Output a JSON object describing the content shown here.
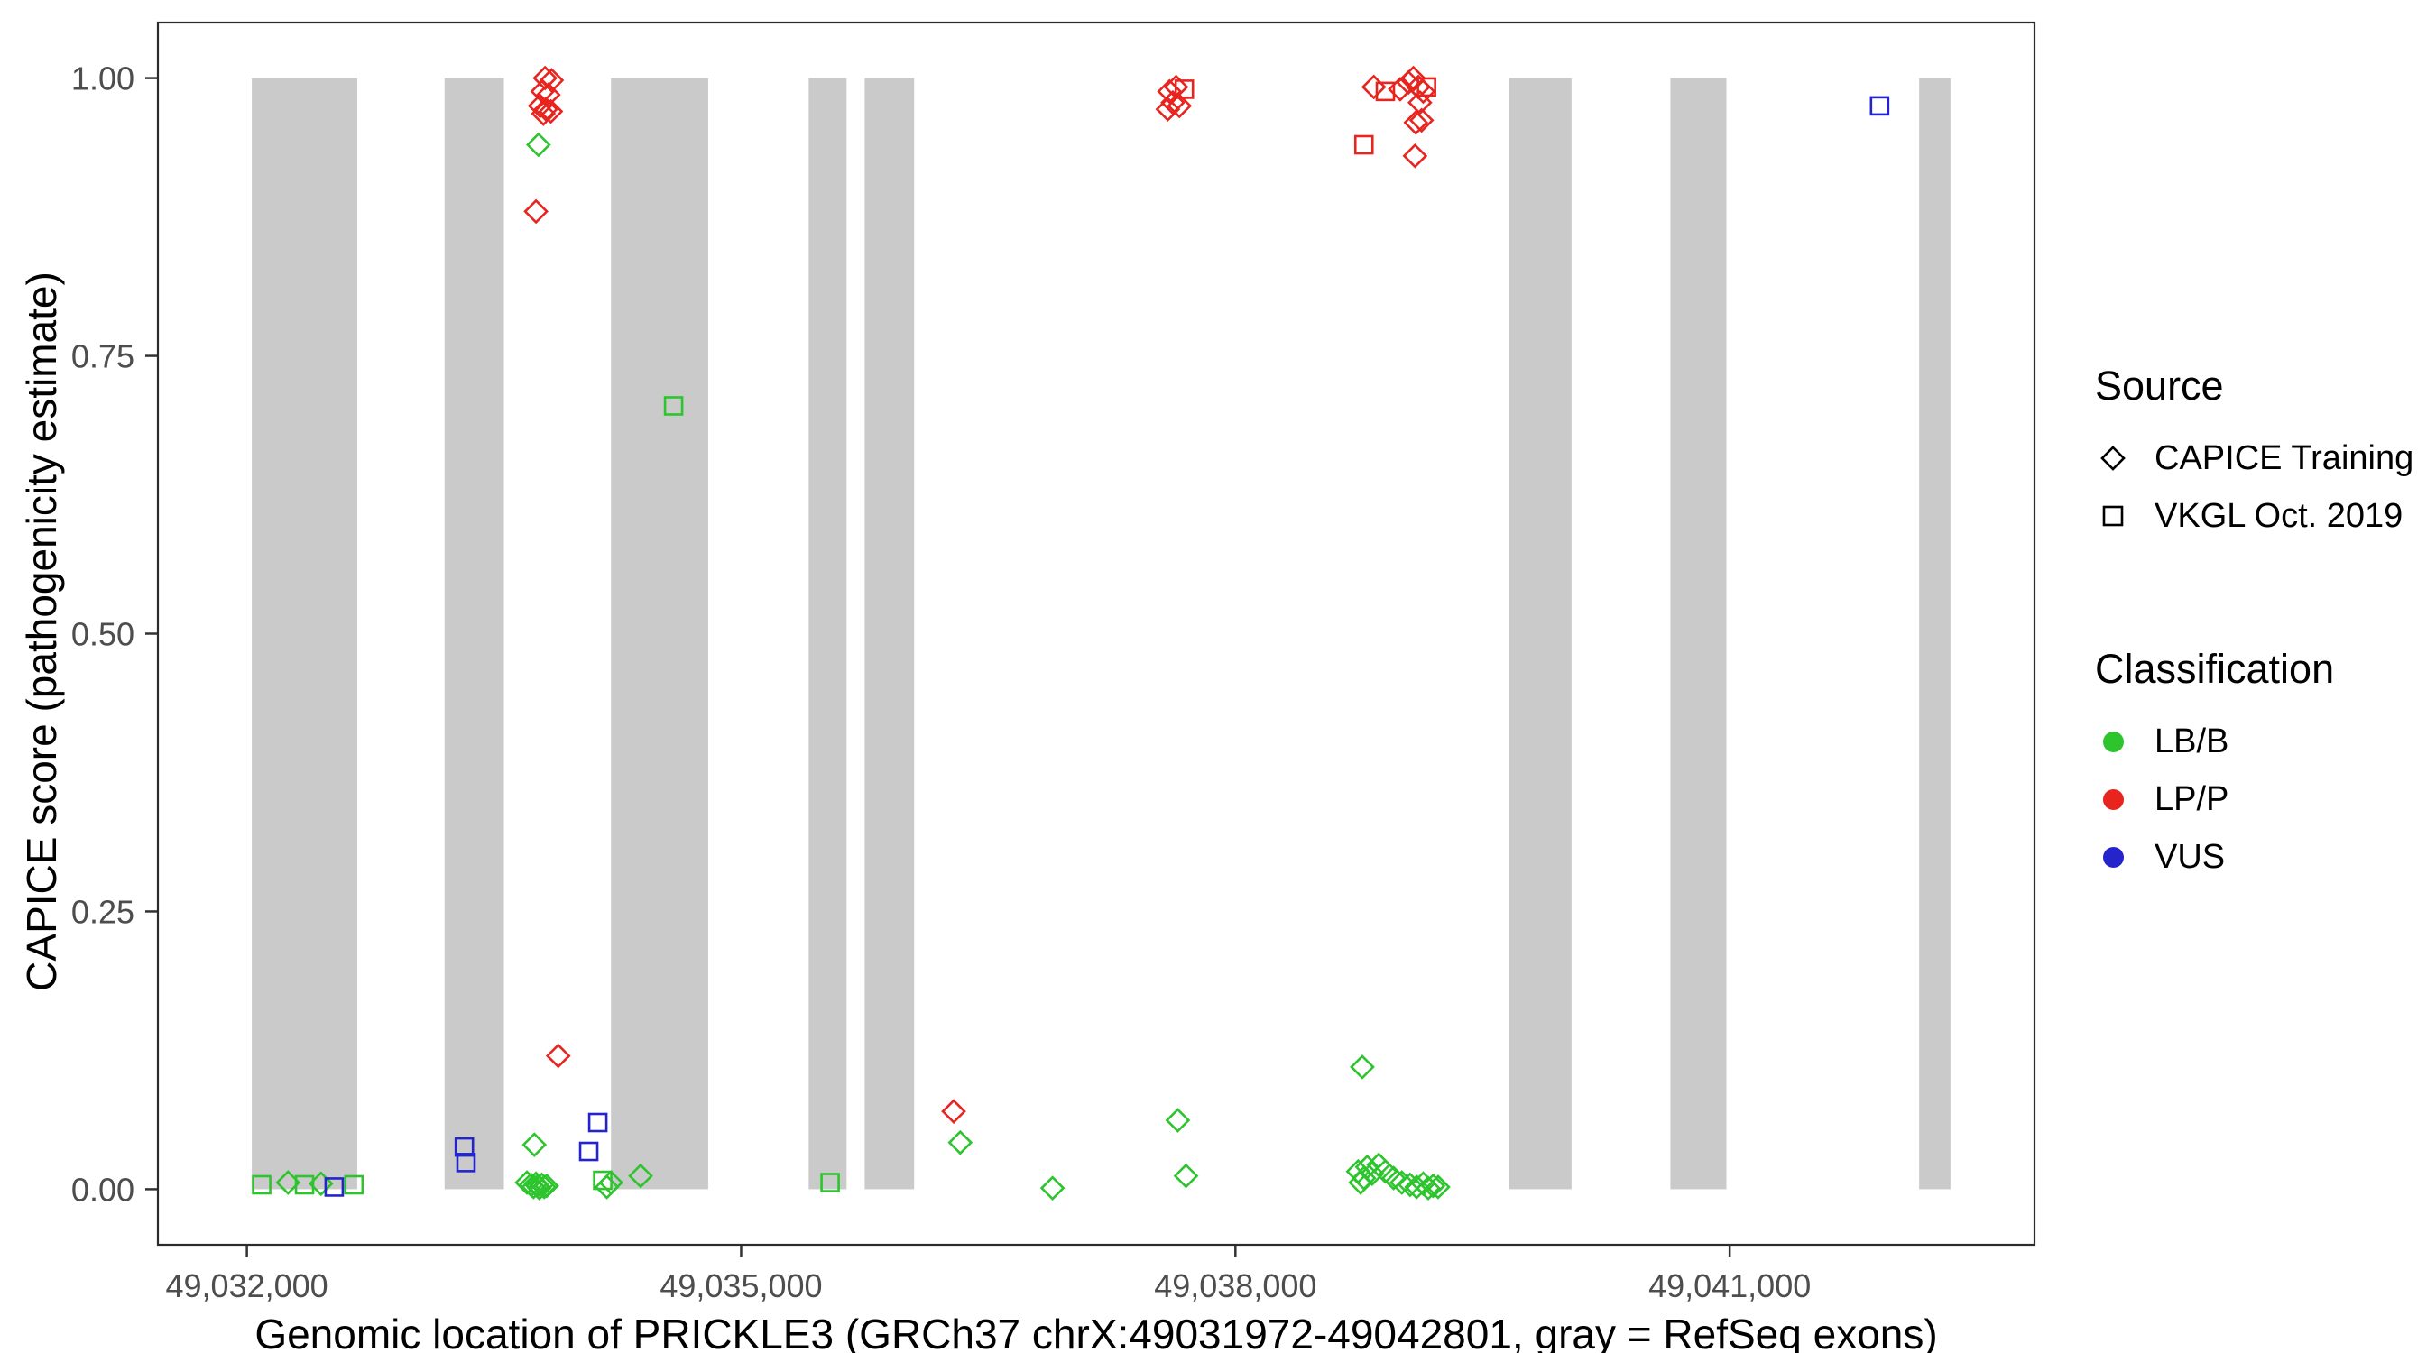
{
  "legend": {
    "source": {
      "title": "Source",
      "items": [
        {
          "label": "CAPICE Training",
          "shape": "diamond"
        },
        {
          "label": "VKGL Oct. 2019",
          "shape": "square"
        }
      ]
    },
    "classification": {
      "title": "Classification",
      "items": [
        {
          "label": "LB/B",
          "color": "#2dc42d"
        },
        {
          "label": "LP/P",
          "color": "#e8241f"
        },
        {
          "label": "VUS",
          "color": "#2424cc"
        }
      ]
    }
  },
  "chart_data": {
    "type": "scatter",
    "title": "",
    "xlabel": "Genomic location of PRICKLE3 (GRCh37 chrX:49031972-49042801, gray = RefSeq exons)",
    "ylabel": "CAPICE score (pathogenicity estimate)",
    "xlim": [
      49031460,
      49042850
    ],
    "ylim": [
      -0.05,
      1.05
    ],
    "grid": false,
    "legend_position": "right",
    "x_ticks": [
      {
        "value": 49032000,
        "label": "49,032,000"
      },
      {
        "value": 49035000,
        "label": "49,035,000"
      },
      {
        "value": 49038000,
        "label": "49,038,000"
      },
      {
        "value": 49041000,
        "label": "49,041,000"
      }
    ],
    "y_ticks": [
      {
        "value": 0.0,
        "label": "0.00"
      },
      {
        "value": 0.25,
        "label": "0.25"
      },
      {
        "value": 0.5,
        "label": "0.50"
      },
      {
        "value": 0.75,
        "label": "0.75"
      },
      {
        "value": 1.0,
        "label": "1.00"
      }
    ],
    "exon_note": "gray bands = RefSeq exons, drawn from score 0 to 1",
    "exon_color": "#cacaca",
    "colors": {
      "LB/B": "#2dc42d",
      "LP/P": "#e8241f",
      "VUS": "#2424cc"
    },
    "shapes": {
      "CAPICE Training": "diamond",
      "VKGL Oct. 2019": "square"
    },
    "exons": [
      [
        49032030,
        49032670
      ],
      [
        49033200,
        49033560
      ],
      [
        49034210,
        49034800
      ],
      [
        49035410,
        49035640
      ],
      [
        49035750,
        49036050
      ],
      [
        49039660,
        49040040
      ],
      [
        49040640,
        49040980
      ],
      [
        49042150,
        49042340
      ]
    ],
    "points": [
      {
        "x": 49032090,
        "y": 0.004,
        "source": "VKGL Oct. 2019",
        "class": "LB/B"
      },
      {
        "x": 49032250,
        "y": 0.006,
        "source": "CAPICE Training",
        "class": "LB/B"
      },
      {
        "x": 49032350,
        "y": 0.004,
        "source": "VKGL Oct. 2019",
        "class": "LB/B"
      },
      {
        "x": 49032450,
        "y": 0.005,
        "source": "CAPICE Training",
        "class": "LB/B"
      },
      {
        "x": 49032530,
        "y": 0.002,
        "source": "VKGL Oct. 2019",
        "class": "VUS"
      },
      {
        "x": 49032650,
        "y": 0.004,
        "source": "VKGL Oct. 2019",
        "class": "LB/B"
      },
      {
        "x": 49033320,
        "y": 0.038,
        "source": "VKGL Oct. 2019",
        "class": "VUS"
      },
      {
        "x": 49033330,
        "y": 0.024,
        "source": "VKGL Oct. 2019",
        "class": "VUS"
      },
      {
        "x": 49033810,
        "y": 1.0,
        "source": "CAPICE Training",
        "class": "LP/P"
      },
      {
        "x": 49033850,
        "y": 0.998,
        "source": "CAPICE Training",
        "class": "LP/P"
      },
      {
        "x": 49033795,
        "y": 0.988,
        "source": "CAPICE Training",
        "class": "LP/P"
      },
      {
        "x": 49033830,
        "y": 0.985,
        "source": "CAPICE Training",
        "class": "LP/P"
      },
      {
        "x": 49033780,
        "y": 0.975,
        "source": "CAPICE Training",
        "class": "LP/P"
      },
      {
        "x": 49033815,
        "y": 0.972,
        "source": "CAPICE Training",
        "class": "LP/P"
      },
      {
        "x": 49033845,
        "y": 0.97,
        "source": "CAPICE Training",
        "class": "LP/P"
      },
      {
        "x": 49033800,
        "y": 0.968,
        "source": "CAPICE Training",
        "class": "LP/P"
      },
      {
        "x": 49033770,
        "y": 0.94,
        "source": "CAPICE Training",
        "class": "LB/B"
      },
      {
        "x": 49033755,
        "y": 0.88,
        "source": "CAPICE Training",
        "class": "LP/P"
      },
      {
        "x": 49033890,
        "y": 0.12,
        "source": "CAPICE Training",
        "class": "LP/P"
      },
      {
        "x": 49033745,
        "y": 0.04,
        "source": "CAPICE Training",
        "class": "LB/B"
      },
      {
        "x": 49033700,
        "y": 0.006,
        "source": "CAPICE Training",
        "class": "LB/B"
      },
      {
        "x": 49033725,
        "y": 0.004,
        "source": "CAPICE Training",
        "class": "LB/B"
      },
      {
        "x": 49033740,
        "y": 0.002,
        "source": "CAPICE Training",
        "class": "LB/B"
      },
      {
        "x": 49033755,
        "y": 0.005,
        "source": "CAPICE Training",
        "class": "LB/B"
      },
      {
        "x": 49033765,
        "y": 0.003,
        "source": "CAPICE Training",
        "class": "LB/B"
      },
      {
        "x": 49033775,
        "y": 0.001,
        "source": "CAPICE Training",
        "class": "LB/B"
      },
      {
        "x": 49033790,
        "y": 0.004,
        "source": "CAPICE Training",
        "class": "LB/B"
      },
      {
        "x": 49033805,
        "y": 0.002,
        "source": "CAPICE Training",
        "class": "LB/B"
      },
      {
        "x": 49033820,
        "y": 0.003,
        "source": "CAPICE Training",
        "class": "LB/B"
      },
      {
        "x": 49034130,
        "y": 0.06,
        "source": "VKGL Oct. 2019",
        "class": "VUS"
      },
      {
        "x": 49034075,
        "y": 0.034,
        "source": "VKGL Oct. 2019",
        "class": "VUS"
      },
      {
        "x": 49034160,
        "y": 0.008,
        "source": "VKGL Oct. 2019",
        "class": "LB/B"
      },
      {
        "x": 49034185,
        "y": 0.002,
        "source": "CAPICE Training",
        "class": "LB/B"
      },
      {
        "x": 49034210,
        "y": 0.006,
        "source": "CAPICE Training",
        "class": "LB/B"
      },
      {
        "x": 49034390,
        "y": 0.012,
        "source": "CAPICE Training",
        "class": "LB/B"
      },
      {
        "x": 49034590,
        "y": 0.705,
        "source": "VKGL Oct. 2019",
        "class": "LB/B"
      },
      {
        "x": 49035540,
        "y": 0.006,
        "source": "VKGL Oct. 2019",
        "class": "LB/B"
      },
      {
        "x": 49036290,
        "y": 0.07,
        "source": "CAPICE Training",
        "class": "LP/P"
      },
      {
        "x": 49036330,
        "y": 0.042,
        "source": "CAPICE Training",
        "class": "LB/B"
      },
      {
        "x": 49036890,
        "y": 0.001,
        "source": "CAPICE Training",
        "class": "LB/B"
      },
      {
        "x": 49037650,
        "y": 0.062,
        "source": "CAPICE Training",
        "class": "LB/B"
      },
      {
        "x": 49037700,
        "y": 0.012,
        "source": "CAPICE Training",
        "class": "LB/B"
      },
      {
        "x": 49037600,
        "y": 0.988,
        "source": "CAPICE Training",
        "class": "LP/P"
      },
      {
        "x": 49037640,
        "y": 0.992,
        "source": "CAPICE Training",
        "class": "LP/P"
      },
      {
        "x": 49037690,
        "y": 0.99,
        "source": "VKGL Oct. 2019",
        "class": "LP/P"
      },
      {
        "x": 49037620,
        "y": 0.978,
        "source": "CAPICE Training",
        "class": "LP/P"
      },
      {
        "x": 49037590,
        "y": 0.972,
        "source": "CAPICE Training",
        "class": "LP/P"
      },
      {
        "x": 49037660,
        "y": 0.975,
        "source": "CAPICE Training",
        "class": "LP/P"
      },
      {
        "x": 49038840,
        "y": 0.992,
        "source": "CAPICE Training",
        "class": "LP/P"
      },
      {
        "x": 49038910,
        "y": 0.988,
        "source": "VKGL Oct. 2019",
        "class": "LP/P"
      },
      {
        "x": 49039000,
        "y": 0.99,
        "source": "CAPICE Training",
        "class": "LP/P"
      },
      {
        "x": 49039050,
        "y": 0.996,
        "source": "CAPICE Training",
        "class": "LP/P"
      },
      {
        "x": 49039080,
        "y": 1.0,
        "source": "CAPICE Training",
        "class": "LP/P"
      },
      {
        "x": 49039110,
        "y": 0.992,
        "source": "CAPICE Training",
        "class": "LP/P"
      },
      {
        "x": 49039140,
        "y": 0.988,
        "source": "CAPICE Training",
        "class": "LP/P"
      },
      {
        "x": 49039160,
        "y": 0.992,
        "source": "VKGL Oct. 2019",
        "class": "LP/P"
      },
      {
        "x": 49039120,
        "y": 0.978,
        "source": "CAPICE Training",
        "class": "LP/P"
      },
      {
        "x": 49039095,
        "y": 0.96,
        "source": "CAPICE Training",
        "class": "LP/P"
      },
      {
        "x": 49039130,
        "y": 0.962,
        "source": "CAPICE Training",
        "class": "LP/P"
      },
      {
        "x": 49038780,
        "y": 0.94,
        "source": "VKGL Oct. 2019",
        "class": "LP/P"
      },
      {
        "x": 49039090,
        "y": 0.93,
        "source": "CAPICE Training",
        "class": "LP/P"
      },
      {
        "x": 49038770,
        "y": 0.11,
        "source": "CAPICE Training",
        "class": "LB/B"
      },
      {
        "x": 49038745,
        "y": 0.016,
        "source": "CAPICE Training",
        "class": "LB/B"
      },
      {
        "x": 49038760,
        "y": 0.006,
        "source": "CAPICE Training",
        "class": "LB/B"
      },
      {
        "x": 49038780,
        "y": 0.01,
        "source": "CAPICE Training",
        "class": "LB/B"
      },
      {
        "x": 49038800,
        "y": 0.02,
        "source": "CAPICE Training",
        "class": "LB/B"
      },
      {
        "x": 49038830,
        "y": 0.014,
        "source": "CAPICE Training",
        "class": "LB/B"
      },
      {
        "x": 49038870,
        "y": 0.022,
        "source": "CAPICE Training",
        "class": "LB/B"
      },
      {
        "x": 49038910,
        "y": 0.016,
        "source": "CAPICE Training",
        "class": "LB/B"
      },
      {
        "x": 49038960,
        "y": 0.01,
        "source": "CAPICE Training",
        "class": "LB/B"
      },
      {
        "x": 49039010,
        "y": 0.006,
        "source": "CAPICE Training",
        "class": "LB/B"
      },
      {
        "x": 49039060,
        "y": 0.004,
        "source": "CAPICE Training",
        "class": "LB/B"
      },
      {
        "x": 49039100,
        "y": 0.002,
        "source": "CAPICE Training",
        "class": "LB/B"
      },
      {
        "x": 49039140,
        "y": 0.005,
        "source": "CAPICE Training",
        "class": "LB/B"
      },
      {
        "x": 49039170,
        "y": 0.001,
        "source": "CAPICE Training",
        "class": "LB/B"
      },
      {
        "x": 49039200,
        "y": 0.003,
        "source": "CAPICE Training",
        "class": "LB/B"
      },
      {
        "x": 49039230,
        "y": 0.002,
        "source": "CAPICE Training",
        "class": "LB/B"
      },
      {
        "x": 49041910,
        "y": 0.975,
        "source": "VKGL Oct. 2019",
        "class": "VUS"
      }
    ]
  }
}
